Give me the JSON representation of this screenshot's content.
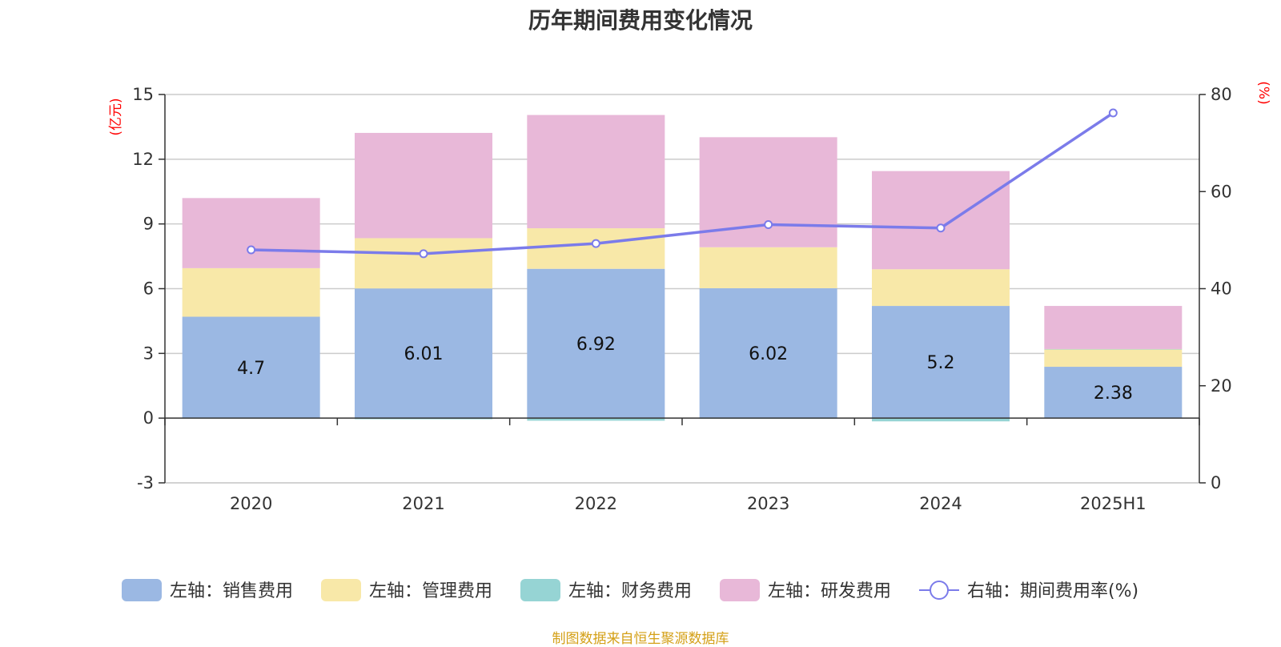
{
  "chart_data": {
    "type": "bar",
    "stacked": true,
    "title": "历年期间费用变化情况",
    "categories": [
      "2020",
      "2021",
      "2022",
      "2023",
      "2024",
      "2025H1"
    ],
    "left_axis": {
      "unit": "(亿元)",
      "ylim": [
        -3,
        15
      ],
      "ticks": [
        -3,
        0,
        3,
        6,
        9,
        12,
        15
      ]
    },
    "right_axis": {
      "unit": "(%)",
      "ylim": [
        0,
        80
      ],
      "ticks": [
        0,
        20,
        40,
        60,
        80
      ]
    },
    "series": [
      {
        "name": "左轴：销售费用",
        "type": "bar",
        "axis": "left",
        "color": "#9bb8e3",
        "values": [
          4.7,
          6.01,
          6.92,
          6.02,
          5.2,
          2.38
        ],
        "labels": [
          "4.7",
          "6.01",
          "6.92",
          "6.02",
          "5.2",
          "2.38"
        ]
      },
      {
        "name": "左轴：管理费用",
        "type": "bar",
        "axis": "left",
        "color": "#f8e8a8",
        "values": [
          2.25,
          2.33,
          1.88,
          1.9,
          1.7,
          0.8
        ]
      },
      {
        "name": "左轴：财务费用",
        "type": "bar",
        "axis": "left",
        "color": "#96d4d4",
        "values": [
          -0.02,
          -0.05,
          -0.12,
          -0.03,
          -0.15,
          0.02
        ]
      },
      {
        "name": "左轴：研发费用",
        "type": "bar",
        "axis": "left",
        "color": "#e8b8d8",
        "values": [
          3.25,
          4.88,
          5.25,
          5.1,
          4.55,
          2.0
        ]
      },
      {
        "name": "右轴：期间费用率(%)",
        "type": "line",
        "axis": "right",
        "color": "#7b7bea",
        "values": [
          48,
          47.2,
          49.3,
          53.2,
          52.5,
          76.2
        ]
      }
    ],
    "grid": true,
    "legend_position": "bottom"
  },
  "source_note": "制图数据来自恒生聚源数据库"
}
